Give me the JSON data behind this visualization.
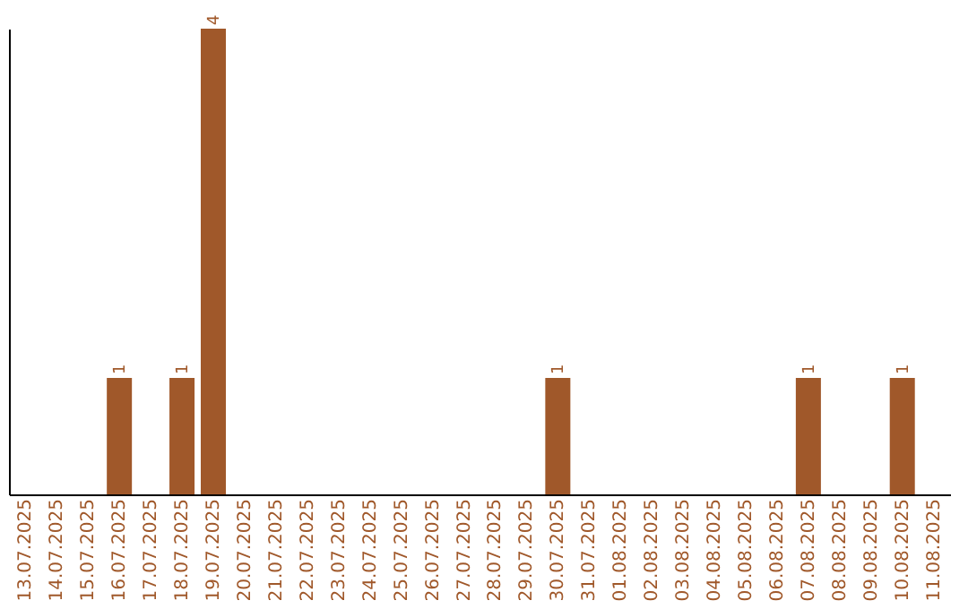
{
  "chart_data": {
    "type": "bar",
    "categories": [
      "13.07.2025",
      "14.07.2025",
      "15.07.2025",
      "16.07.2025",
      "17.07.2025",
      "18.07.2025",
      "19.07.2025",
      "20.07.2025",
      "21.07.2025",
      "22.07.2025",
      "23.07.2025",
      "24.07.2025",
      "25.07.2025",
      "26.07.2025",
      "27.07.2025",
      "28.07.2025",
      "29.07.2025",
      "30.07.2025",
      "31.07.2025",
      "01.08.2025",
      "02.08.2025",
      "03.08.2025",
      "04.08.2025",
      "05.08.2025",
      "06.08.2025",
      "07.08.2025",
      "08.08.2025",
      "09.08.2025",
      "10.08.2025",
      "11.08.2025"
    ],
    "values": [
      0,
      0,
      0,
      1,
      0,
      1,
      4,
      0,
      0,
      0,
      0,
      0,
      0,
      0,
      0,
      0,
      0,
      1,
      0,
      0,
      0,
      0,
      0,
      0,
      0,
      1,
      0,
      0,
      1,
      0
    ],
    "value_labels": [
      null,
      null,
      null,
      "1",
      null,
      "1",
      "4",
      null,
      null,
      null,
      null,
      null,
      null,
      null,
      null,
      null,
      null,
      "1",
      null,
      null,
      null,
      null,
      null,
      null,
      null,
      "1",
      null,
      null,
      "1",
      null
    ],
    "color": "#a0582a",
    "grid": false,
    "tick_labels": "x"
  }
}
